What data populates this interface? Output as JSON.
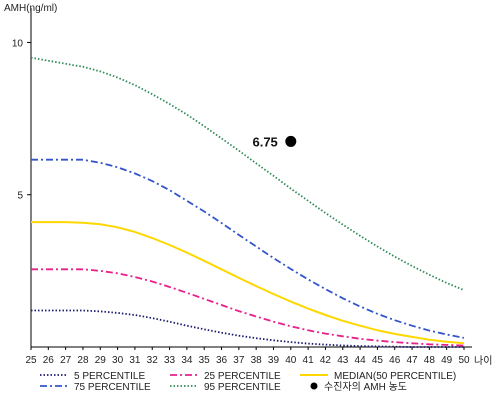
{
  "chart_data": {
    "type": "line",
    "ylabel": "AMH(ng/ml)",
    "xlabel": "나이",
    "x": [
      25,
      26,
      27,
      28,
      29,
      30,
      31,
      32,
      33,
      34,
      35,
      36,
      37,
      38,
      39,
      40,
      41,
      42,
      43,
      44,
      45,
      46,
      47,
      48,
      49,
      50
    ],
    "xlim": [
      25,
      50
    ],
    "ylim": [
      0,
      11
    ],
    "yticks": [
      5,
      10
    ],
    "grid": false,
    "legend_position": "bottom",
    "series": [
      {
        "name": "5 PERCENTILE",
        "color": "#1a1a6e",
        "style": "dotted",
        "values": [
          1.2,
          1.2,
          1.2,
          1.2,
          1.17,
          1.12,
          1.05,
          0.95,
          0.83,
          0.7,
          0.58,
          0.47,
          0.37,
          0.29,
          0.22,
          0.16,
          0.11,
          0.08,
          0.05,
          0.03,
          0.02,
          0.01,
          0.0,
          0.0,
          0.0,
          0.0
        ]
      },
      {
        "name": "25 PERCENTILE",
        "color": "#e8208c",
        "style": "dashdot",
        "values": [
          2.55,
          2.55,
          2.55,
          2.55,
          2.5,
          2.42,
          2.3,
          2.15,
          1.97,
          1.78,
          1.58,
          1.38,
          1.18,
          1.0,
          0.83,
          0.68,
          0.55,
          0.44,
          0.35,
          0.27,
          0.21,
          0.16,
          0.12,
          0.09,
          0.07,
          0.05
        ]
      },
      {
        "name": "MEDIAN(50 PERCENTILE)",
        "color": "#ffd700",
        "style": "solid",
        "values": [
          4.1,
          4.1,
          4.1,
          4.08,
          4.03,
          3.93,
          3.78,
          3.58,
          3.35,
          3.1,
          2.83,
          2.55,
          2.27,
          2.0,
          1.74,
          1.49,
          1.26,
          1.05,
          0.86,
          0.7,
          0.55,
          0.43,
          0.33,
          0.24,
          0.17,
          0.12
        ]
      },
      {
        "name": "75 PERCENTILE",
        "color": "#3355cc",
        "style": "dashdot",
        "values": [
          6.15,
          6.15,
          6.15,
          6.15,
          6.05,
          5.9,
          5.7,
          5.45,
          5.15,
          4.8,
          4.45,
          4.07,
          3.68,
          3.3,
          2.92,
          2.56,
          2.22,
          1.9,
          1.6,
          1.33,
          1.09,
          0.88,
          0.7,
          0.54,
          0.41,
          0.3
        ]
      },
      {
        "name": "95 PERCENTILE",
        "color": "#2e8b57",
        "style": "dotted",
        "values": [
          9.5,
          9.4,
          9.3,
          9.2,
          9.05,
          8.85,
          8.6,
          8.3,
          7.98,
          7.63,
          7.25,
          6.85,
          6.45,
          6.03,
          5.62,
          5.2,
          4.8,
          4.4,
          4.02,
          3.65,
          3.3,
          2.97,
          2.66,
          2.37,
          2.1,
          1.87
        ]
      }
    ],
    "patient": {
      "name": "수진자의 AMH 농도",
      "x": 40,
      "y": 6.75,
      "label": "6.75",
      "color": "#000000"
    },
    "legend": [
      {
        "label": "5 PERCENTILE"
      },
      {
        "label": "25 PERCENTILE"
      },
      {
        "label": "MEDIAN(50 PERCENTILE)"
      },
      {
        "label": "75 PERCENTILE"
      },
      {
        "label": "95 PERCENTILE"
      },
      {
        "label": "수진자의 AMH 농도"
      }
    ]
  }
}
